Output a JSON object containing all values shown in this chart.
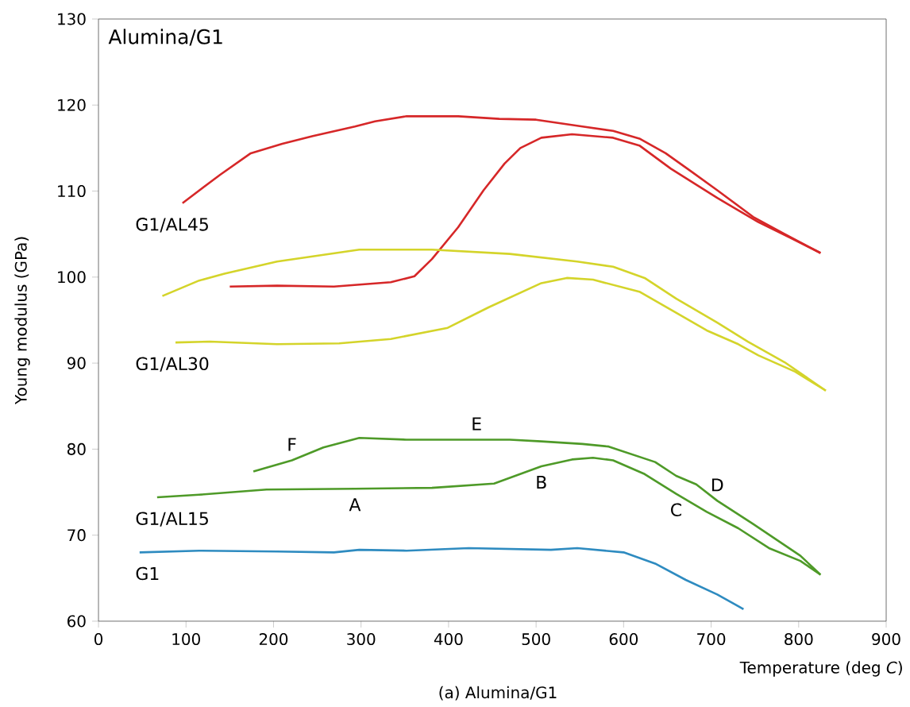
{
  "chart_data": {
    "type": "line",
    "title": "Alumina/G1",
    "xlabel": "Temperature (deg *C*)",
    "ylabel": "Young modulus (GPa)",
    "xlim": [
      0,
      900
    ],
    "ylim": [
      60,
      130
    ],
    "xticks": [
      0,
      100,
      200,
      300,
      400,
      500,
      600,
      700,
      800,
      900
    ],
    "yticks": [
      60,
      70,
      80,
      90,
      100,
      110,
      120,
      130
    ],
    "marker": "none",
    "series": [
      {
        "name": "G1/AL45",
        "color": "#d62728",
        "x": [
          96,
          139,
          174,
          210,
          245,
          293,
          316,
          352,
          411,
          458,
          500,
          553,
          588,
          618,
          648,
          677,
          707,
          748,
          784,
          825
        ],
        "values": [
          108.6,
          111.9,
          114.4,
          115.5,
          116.4,
          117.5,
          118.1,
          118.7,
          118.7,
          118.4,
          118.3,
          117.5,
          117.0,
          116.1,
          114.4,
          112.3,
          110.1,
          107.0,
          105.0,
          102.8
        ]
      },
      {
        "color": "#d62728",
        "x": [
          150,
          204,
          269,
          334,
          361,
          381,
          411,
          440,
          464,
          482,
          506,
          541,
          588,
          618,
          654,
          707,
          754,
          790,
          825
        ],
        "values": [
          98.9,
          99.0,
          98.9,
          99.4,
          100.1,
          102.1,
          105.8,
          110.1,
          113.2,
          115.0,
          116.2,
          116.6,
          116.2,
          115.3,
          112.6,
          109.2,
          106.4,
          104.6,
          102.8
        ]
      },
      {
        "color": "#d4d42a",
        "x": [
          73,
          115,
          144,
          204,
          298,
          381,
          470,
          547,
          588,
          624,
          660,
          707,
          742,
          784,
          831
        ],
        "values": [
          97.8,
          99.6,
          100.4,
          101.8,
          103.2,
          103.2,
          102.7,
          101.8,
          101.2,
          99.9,
          97.5,
          94.7,
          92.5,
          90.1,
          86.8
        ]
      },
      {
        "name": "G1/AL30",
        "color": "#d4d42a",
        "x": [
          88,
          127,
          204,
          275,
          334,
          399,
          446,
          506,
          535,
          565,
          618,
          654,
          695,
          731,
          754,
          796,
          831
        ],
        "values": [
          92.4,
          92.5,
          92.2,
          92.3,
          92.8,
          94.1,
          96.5,
          99.3,
          99.9,
          99.7,
          98.3,
          96.2,
          93.8,
          92.2,
          90.9,
          89.0,
          86.8
        ]
      },
      {
        "color": "#4e9a28",
        "x": [
          177,
          221,
          257,
          298,
          352,
          470,
          506,
          553,
          583,
          636,
          660,
          683,
          707,
          748,
          802,
          825
        ],
        "values": [
          77.4,
          78.7,
          80.2,
          81.3,
          81.1,
          81.1,
          80.9,
          80.6,
          80.3,
          78.5,
          76.9,
          75.9,
          74.0,
          71.3,
          67.6,
          65.4
        ]
      },
      {
        "name": "G1/AL15",
        "color": "#4e9a28",
        "x": [
          67,
          115,
          192,
          293,
          381,
          452,
          506,
          541,
          565,
          588,
          624,
          660,
          695,
          731,
          766,
          802,
          825
        ],
        "values": [
          74.4,
          74.7,
          75.3,
          75.4,
          75.5,
          76.0,
          78.0,
          78.8,
          79.0,
          78.7,
          77.1,
          74.8,
          72.7,
          70.8,
          68.5,
          67.0,
          65.4
        ]
      },
      {
        "name": "G1",
        "color": "#2e8bc0",
        "x": [
          47,
          115,
          204,
          269,
          298,
          352,
          423,
          517,
          547,
          600,
          636,
          671,
          707,
          737
        ],
        "values": [
          68.0,
          68.2,
          68.1,
          68.0,
          68.3,
          68.2,
          68.5,
          68.3,
          68.5,
          68.0,
          66.7,
          64.8,
          63.1,
          61.4
        ]
      }
    ],
    "annotations": [
      {
        "text": "F",
        "x": 221,
        "y": 78.7
      },
      {
        "text": "E",
        "x": 432,
        "y": 81.1
      },
      {
        "text": "D",
        "x": 707,
        "y": 74.0
      },
      {
        "text": "B",
        "x": 506,
        "y": 78.0
      },
      {
        "text": "A",
        "x": 293,
        "y": 75.4
      },
      {
        "text": "C",
        "x": 660,
        "y": 74.8
      },
      "(a) Alumina/G1"
    ]
  }
}
